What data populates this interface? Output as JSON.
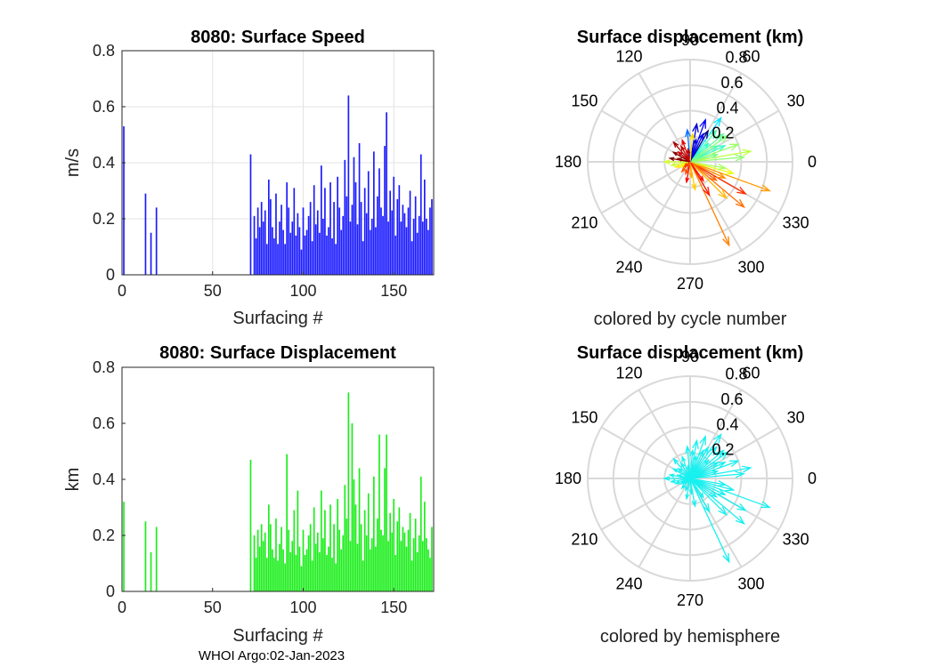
{
  "footer": "WHOI Argo:02-Jan-2023",
  "chart_data": [
    {
      "type": "bar",
      "id": "speed",
      "title": "8080: Surface Speed",
      "xlabel": "Surfacing #",
      "ylabel": "m/s",
      "xlim": [
        0,
        172
      ],
      "ylim": [
        0,
        0.8
      ],
      "xticks": [
        "0",
        "50",
        "100",
        "150"
      ],
      "xtick_values": [
        0,
        50,
        100,
        150
      ],
      "yticks": [
        "0",
        "0.2",
        "0.4",
        "0.6",
        "0.8"
      ],
      "ytick_values": [
        0,
        0.2,
        0.4,
        0.6,
        0.8
      ],
      "grid": true,
      "color": "#1a1aff",
      "x": [
        1,
        13,
        16,
        19,
        71,
        73,
        74,
        75,
        76,
        77,
        78,
        79,
        80,
        81,
        82,
        83,
        84,
        85,
        86,
        87,
        88,
        89,
        90,
        91,
        92,
        93,
        94,
        95,
        96,
        97,
        98,
        99,
        100,
        101,
        102,
        103,
        104,
        105,
        106,
        107,
        108,
        109,
        110,
        111,
        112,
        113,
        114,
        115,
        116,
        117,
        118,
        119,
        120,
        121,
        122,
        123,
        124,
        125,
        126,
        127,
        128,
        129,
        130,
        131,
        132,
        133,
        134,
        135,
        136,
        137,
        138,
        139,
        140,
        141,
        142,
        143,
        144,
        145,
        146,
        147,
        148,
        149,
        150,
        151,
        152,
        153,
        154,
        155,
        156,
        157,
        158,
        159,
        160,
        161,
        162,
        163,
        164,
        165,
        166,
        167,
        168,
        169,
        170,
        171
      ],
      "values": [
        0.53,
        0.29,
        0.15,
        0.24,
        0.43,
        0.21,
        0.13,
        0.24,
        0.17,
        0.26,
        0.19,
        0.23,
        0.11,
        0.34,
        0.27,
        0.17,
        0.13,
        0.29,
        0.11,
        0.19,
        0.25,
        0.16,
        0.11,
        0.33,
        0.24,
        0.15,
        0.19,
        0.31,
        0.14,
        0.22,
        0.17,
        0.09,
        0.24,
        0.14,
        0.16,
        0.21,
        0.26,
        0.12,
        0.32,
        0.18,
        0.23,
        0.15,
        0.39,
        0.2,
        0.31,
        0.14,
        0.17,
        0.33,
        0.13,
        0.26,
        0.11,
        0.35,
        0.24,
        0.16,
        0.21,
        0.41,
        0.28,
        0.64,
        0.19,
        0.25,
        0.42,
        0.33,
        0.18,
        0.47,
        0.26,
        0.12,
        0.31,
        0.22,
        0.37,
        0.16,
        0.2,
        0.44,
        0.17,
        0.28,
        0.38,
        0.24,
        0.21,
        0.46,
        0.58,
        0.19,
        0.3,
        0.23,
        0.35,
        0.14,
        0.27,
        0.32,
        0.19,
        0.25,
        0.22,
        0.17,
        0.24,
        0.3,
        0.12,
        0.2,
        0.28,
        0.15,
        0.21,
        0.43,
        0.19,
        0.34,
        0.2,
        0.16,
        0.24,
        0.27
      ]
    },
    {
      "type": "bar",
      "id": "displacement",
      "title": "8080: Surface Displacement",
      "xlabel": "Surfacing #",
      "ylabel": "km",
      "xlim": [
        0,
        172
      ],
      "ylim": [
        0,
        0.8
      ],
      "xticks": [
        "0",
        "50",
        "100",
        "150"
      ],
      "xtick_values": [
        0,
        50,
        100,
        150
      ],
      "yticks": [
        "0",
        "0.2",
        "0.4",
        "0.6",
        "0.8"
      ],
      "ytick_values": [
        0,
        0.2,
        0.4,
        0.6,
        0.8
      ],
      "grid": false,
      "color": "#1aee1a",
      "x": [
        1,
        13,
        16,
        19,
        71,
        73,
        74,
        75,
        76,
        77,
        78,
        79,
        80,
        81,
        82,
        83,
        84,
        85,
        86,
        87,
        88,
        89,
        90,
        91,
        92,
        93,
        94,
        95,
        96,
        97,
        98,
        99,
        100,
        101,
        102,
        103,
        104,
        105,
        106,
        107,
        108,
        109,
        110,
        111,
        112,
        113,
        114,
        115,
        116,
        117,
        118,
        119,
        120,
        121,
        122,
        123,
        124,
        125,
        126,
        127,
        128,
        129,
        130,
        131,
        132,
        133,
        134,
        135,
        136,
        137,
        138,
        139,
        140,
        141,
        142,
        143,
        144,
        145,
        146,
        147,
        148,
        149,
        150,
        151,
        152,
        153,
        154,
        155,
        156,
        157,
        158,
        159,
        160,
        161,
        162,
        163,
        164,
        165,
        166,
        167,
        168,
        169,
        170,
        171
      ],
      "values": [
        0.32,
        0.25,
        0.14,
        0.23,
        0.47,
        0.2,
        0.12,
        0.22,
        0.16,
        0.24,
        0.18,
        0.21,
        0.12,
        0.31,
        0.24,
        0.15,
        0.12,
        0.26,
        0.11,
        0.17,
        0.23,
        0.15,
        0.1,
        0.49,
        0.22,
        0.14,
        0.18,
        0.29,
        0.13,
        0.36,
        0.16,
        0.09,
        0.22,
        0.13,
        0.15,
        0.2,
        0.24,
        0.11,
        0.3,
        0.17,
        0.21,
        0.14,
        0.36,
        0.19,
        0.29,
        0.13,
        0.16,
        0.31,
        0.12,
        0.24,
        0.1,
        0.33,
        0.22,
        0.15,
        0.2,
        0.38,
        0.26,
        0.71,
        0.18,
        0.6,
        0.4,
        0.31,
        0.17,
        0.44,
        0.24,
        0.11,
        0.29,
        0.2,
        0.35,
        0.15,
        0.19,
        0.41,
        0.16,
        0.26,
        0.56,
        0.22,
        0.2,
        0.44,
        0.56,
        0.18,
        0.28,
        0.21,
        0.33,
        0.13,
        0.25,
        0.3,
        0.18,
        0.23,
        0.21,
        0.16,
        0.22,
        0.28,
        0.11,
        0.19,
        0.26,
        0.14,
        0.2,
        0.41,
        0.18,
        0.32,
        0.19,
        0.15,
        0.12,
        0.23
      ]
    },
    {
      "type": "polar-quiver",
      "id": "polar-cycle",
      "title": "Surface displacement (km)",
      "caption": "colored by cycle number",
      "rmax": 0.8,
      "rticks": [
        "0.2",
        "0.4",
        "0.6",
        "0.8"
      ],
      "rtick_values": [
        0.2,
        0.4,
        0.6,
        0.8
      ],
      "theta_ticks": [
        "0",
        "30",
        "60",
        "90",
        "120",
        "150",
        "180",
        "210",
        "240",
        "270",
        "300",
        "330"
      ],
      "theta_tick_values": [
        0,
        30,
        60,
        90,
        120,
        150,
        180,
        210,
        240,
        270,
        300,
        330
      ],
      "colormap": "jet",
      "vectors": [
        {
          "angle": 340,
          "r": 0.66,
          "cycle": 124
        },
        {
          "angle": 295,
          "r": 0.72,
          "cycle": 128
        },
        {
          "angle": 320,
          "r": 0.55,
          "cycle": 131
        },
        {
          "angle": 330,
          "r": 0.5,
          "cycle": 142
        },
        {
          "angle": 10,
          "r": 0.48,
          "cycle": 96
        },
        {
          "angle": 5,
          "r": 0.42,
          "cycle": 88
        },
        {
          "angle": 25,
          "r": 0.3,
          "cycle": 74
        },
        {
          "angle": 40,
          "r": 0.34,
          "cycle": 80
        },
        {
          "angle": 55,
          "r": 0.42,
          "cycle": 60
        },
        {
          "angle": 70,
          "r": 0.35,
          "cycle": 20
        },
        {
          "angle": 80,
          "r": 0.3,
          "cycle": 13
        },
        {
          "angle": 95,
          "r": 0.25,
          "cycle": 40
        },
        {
          "angle": 110,
          "r": 0.18,
          "cycle": 155
        },
        {
          "angle": 130,
          "r": 0.2,
          "cycle": 165
        },
        {
          "angle": 150,
          "r": 0.15,
          "cycle": 170
        },
        {
          "angle": 180,
          "r": 0.2,
          "cycle": 100
        },
        {
          "angle": 200,
          "r": 0.12,
          "cycle": 110
        },
        {
          "angle": 230,
          "r": 0.1,
          "cycle": 135
        },
        {
          "angle": 260,
          "r": 0.16,
          "cycle": 150
        },
        {
          "angle": 280,
          "r": 0.22,
          "cycle": 115
        },
        {
          "angle": 300,
          "r": 0.3,
          "cycle": 145
        },
        {
          "angle": 315,
          "r": 0.4,
          "cycle": 119
        },
        {
          "angle": 345,
          "r": 0.35,
          "cycle": 104
        },
        {
          "angle": 350,
          "r": 0.28,
          "cycle": 92
        },
        {
          "angle": 15,
          "r": 0.22,
          "cycle": 84
        },
        {
          "angle": 30,
          "r": 0.25,
          "cycle": 77
        },
        {
          "angle": 45,
          "r": 0.2,
          "cycle": 72
        },
        {
          "angle": 60,
          "r": 0.28,
          "cycle": 1
        },
        {
          "angle": 75,
          "r": 0.18,
          "cycle": 16
        },
        {
          "angle": 100,
          "r": 0.1,
          "cycle": 162
        },
        {
          "angle": 140,
          "r": 0.12,
          "cycle": 158
        },
        {
          "angle": 165,
          "r": 0.1,
          "cycle": 168
        },
        {
          "angle": 190,
          "r": 0.15,
          "cycle": 98
        },
        {
          "angle": 210,
          "r": 0.08,
          "cycle": 107
        },
        {
          "angle": 250,
          "r": 0.1,
          "cycle": 138
        },
        {
          "angle": 275,
          "r": 0.12,
          "cycle": 121
        },
        {
          "angle": 305,
          "r": 0.18,
          "cycle": 148
        },
        {
          "angle": 325,
          "r": 0.25,
          "cycle": 133
        },
        {
          "angle": 335,
          "r": 0.3,
          "cycle": 126
        },
        {
          "angle": 20,
          "r": 0.4,
          "cycle": 90
        },
        {
          "angle": 35,
          "r": 0.36,
          "cycle": 86
        },
        {
          "angle": 50,
          "r": 0.32,
          "cycle": 78
        },
        {
          "angle": 65,
          "r": 0.24,
          "cycle": 19
        },
        {
          "angle": 85,
          "r": 0.22,
          "cycle": 112
        },
        {
          "angle": 120,
          "r": 0.14,
          "cycle": 160
        },
        {
          "angle": 170,
          "r": 0.16,
          "cycle": 171
        },
        {
          "angle": 220,
          "r": 0.06,
          "cycle": 140
        }
      ]
    },
    {
      "type": "polar-quiver",
      "id": "polar-hemisphere",
      "title": "Surface displacement (km)",
      "caption": "colored by hemisphere",
      "rmax": 0.8,
      "rticks": [
        "0.2",
        "0.4",
        "0.6",
        "0.8"
      ],
      "rtick_values": [
        0.2,
        0.4,
        0.6,
        0.8
      ],
      "theta_ticks": [
        "0",
        "30",
        "60",
        "90",
        "120",
        "150",
        "180",
        "210",
        "240",
        "270",
        "300",
        "330"
      ],
      "theta_tick_values": [
        0,
        30,
        60,
        90,
        120,
        150,
        180,
        210,
        240,
        270,
        300,
        330
      ],
      "color": "#19f0f0",
      "vectors": [
        {
          "angle": 340,
          "r": 0.66
        },
        {
          "angle": 295,
          "r": 0.72
        },
        {
          "angle": 320,
          "r": 0.55
        },
        {
          "angle": 330,
          "r": 0.5
        },
        {
          "angle": 10,
          "r": 0.48
        },
        {
          "angle": 5,
          "r": 0.42
        },
        {
          "angle": 25,
          "r": 0.3
        },
        {
          "angle": 40,
          "r": 0.34
        },
        {
          "angle": 55,
          "r": 0.42
        },
        {
          "angle": 70,
          "r": 0.35
        },
        {
          "angle": 80,
          "r": 0.3
        },
        {
          "angle": 95,
          "r": 0.25
        },
        {
          "angle": 110,
          "r": 0.18
        },
        {
          "angle": 130,
          "r": 0.2
        },
        {
          "angle": 150,
          "r": 0.15
        },
        {
          "angle": 180,
          "r": 0.2
        },
        {
          "angle": 200,
          "r": 0.12
        },
        {
          "angle": 230,
          "r": 0.1
        },
        {
          "angle": 260,
          "r": 0.16
        },
        {
          "angle": 280,
          "r": 0.22
        },
        {
          "angle": 300,
          "r": 0.3
        },
        {
          "angle": 315,
          "r": 0.4
        },
        {
          "angle": 345,
          "r": 0.35
        },
        {
          "angle": 350,
          "r": 0.28
        },
        {
          "angle": 15,
          "r": 0.22
        },
        {
          "angle": 30,
          "r": 0.25
        },
        {
          "angle": 45,
          "r": 0.2
        },
        {
          "angle": 60,
          "r": 0.28
        },
        {
          "angle": 75,
          "r": 0.18
        },
        {
          "angle": 100,
          "r": 0.1
        },
        {
          "angle": 140,
          "r": 0.12
        },
        {
          "angle": 165,
          "r": 0.1
        },
        {
          "angle": 190,
          "r": 0.15
        },
        {
          "angle": 210,
          "r": 0.08
        },
        {
          "angle": 250,
          "r": 0.1
        },
        {
          "angle": 275,
          "r": 0.12
        },
        {
          "angle": 305,
          "r": 0.18
        },
        {
          "angle": 325,
          "r": 0.25
        },
        {
          "angle": 335,
          "r": 0.3
        },
        {
          "angle": 20,
          "r": 0.4
        },
        {
          "angle": 35,
          "r": 0.36
        },
        {
          "angle": 50,
          "r": 0.32
        },
        {
          "angle": 65,
          "r": 0.24
        },
        {
          "angle": 85,
          "r": 0.22
        },
        {
          "angle": 120,
          "r": 0.14
        },
        {
          "angle": 170,
          "r": 0.16
        },
        {
          "angle": 220,
          "r": 0.06
        }
      ]
    }
  ]
}
